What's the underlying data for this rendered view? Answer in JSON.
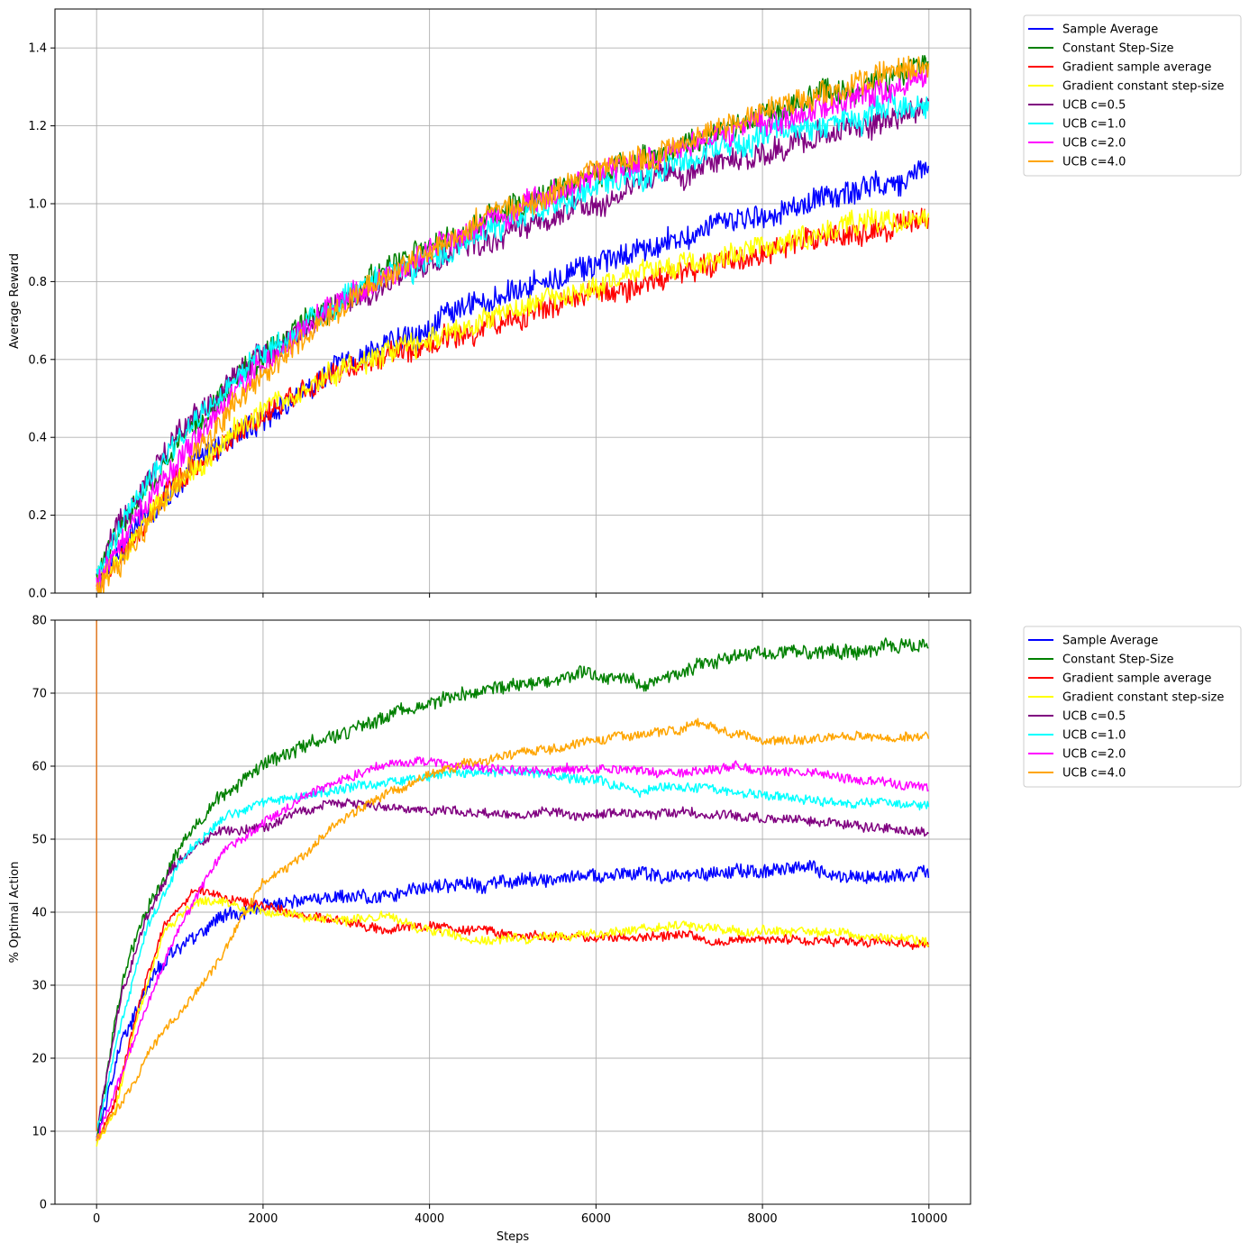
{
  "chart_data": [
    {
      "type": "line",
      "title": "",
      "xlabel": "",
      "ylabel": "Average Reward",
      "xlim": [
        -500,
        10500
      ],
      "ylim": [
        0.0,
        1.5
      ],
      "xticks": [
        0,
        2000,
        4000,
        6000,
        8000,
        10000
      ],
      "yticks": [
        0.0,
        0.2,
        0.4,
        0.6,
        0.8,
        1.0,
        1.2,
        1.4
      ],
      "ytick_labels": [
        "0.0",
        "0.2",
        "0.4",
        "0.6",
        "0.8",
        "1.0",
        "1.2",
        "1.4"
      ],
      "show_xtick_labels": false,
      "grid": true,
      "legend_position": "outside-right-top",
      "series": [
        {
          "name": "Sample Average",
          "color": "#0000ff",
          "noise": 0.03,
          "x": [
            0,
            300,
            800,
            1500,
            2000,
            3000,
            4000,
            5000,
            6000,
            7000,
            8000,
            9000,
            10000
          ],
          "values": [
            0.02,
            0.12,
            0.25,
            0.38,
            0.45,
            0.59,
            0.69,
            0.77,
            0.84,
            0.91,
            0.97,
            1.03,
            1.09
          ]
        },
        {
          "name": "Constant Step-Size",
          "color": "#008000",
          "noise": 0.03,
          "x": [
            0,
            300,
            800,
            1500,
            2000,
            3000,
            4000,
            5000,
            6000,
            7000,
            8000,
            9000,
            10000
          ],
          "values": [
            0.03,
            0.17,
            0.33,
            0.51,
            0.61,
            0.77,
            0.89,
            0.99,
            1.07,
            1.15,
            1.22,
            1.29,
            1.35
          ]
        },
        {
          "name": "Gradient sample average",
          "color": "#ff0000",
          "noise": 0.028,
          "x": [
            0,
            300,
            800,
            1500,
            2000,
            3000,
            4000,
            5000,
            6000,
            7000,
            8000,
            9000,
            10000
          ],
          "values": [
            0.01,
            0.09,
            0.24,
            0.38,
            0.46,
            0.57,
            0.64,
            0.71,
            0.77,
            0.82,
            0.87,
            0.92,
            0.96
          ]
        },
        {
          "name": "Gradient constant step-size",
          "color": "#ffff00",
          "noise": 0.028,
          "x": [
            0,
            300,
            800,
            1500,
            2000,
            3000,
            4000,
            5000,
            6000,
            7000,
            8000,
            9000,
            10000
          ],
          "values": [
            0.01,
            0.09,
            0.24,
            0.39,
            0.47,
            0.58,
            0.65,
            0.72,
            0.79,
            0.84,
            0.89,
            0.94,
            0.98
          ]
        },
        {
          "name": "UCB c=0.5",
          "color": "#800080",
          "noise": 0.03,
          "x": [
            0,
            300,
            800,
            1500,
            2000,
            3000,
            4000,
            5000,
            6000,
            7000,
            8000,
            9000,
            10000
          ],
          "values": [
            0.03,
            0.19,
            0.36,
            0.52,
            0.61,
            0.75,
            0.85,
            0.93,
            1.01,
            1.08,
            1.14,
            1.19,
            1.25
          ]
        },
        {
          "name": "UCB c=1.0",
          "color": "#00ffff",
          "noise": 0.03,
          "x": [
            0,
            300,
            800,
            1500,
            2000,
            3000,
            4000,
            5000,
            6000,
            7000,
            8000,
            9000,
            10000
          ],
          "values": [
            0.03,
            0.17,
            0.34,
            0.51,
            0.61,
            0.76,
            0.87,
            0.96,
            1.04,
            1.11,
            1.17,
            1.22,
            1.26
          ]
        },
        {
          "name": "UCB c=2.0",
          "color": "#ff00ff",
          "noise": 0.03,
          "x": [
            0,
            300,
            800,
            1500,
            2000,
            3000,
            4000,
            5000,
            6000,
            7000,
            8000,
            9000,
            10000
          ],
          "values": [
            0.02,
            0.13,
            0.29,
            0.48,
            0.59,
            0.76,
            0.88,
            0.98,
            1.07,
            1.14,
            1.21,
            1.27,
            1.32
          ]
        },
        {
          "name": "UCB c=4.0",
          "color": "#ffa500",
          "noise": 0.03,
          "x": [
            0,
            300,
            800,
            1500,
            2000,
            3000,
            4000,
            5000,
            6000,
            7000,
            8000,
            9000,
            10000
          ],
          "values": [
            0.0,
            0.08,
            0.24,
            0.44,
            0.56,
            0.75,
            0.89,
            0.99,
            1.08,
            1.16,
            1.23,
            1.3,
            1.36
          ]
        }
      ]
    },
    {
      "type": "line",
      "title": "",
      "xlabel": "Steps",
      "ylabel": "% Optimal Action",
      "xlim": [
        -500,
        10500
      ],
      "ylim": [
        0,
        80
      ],
      "xticks": [
        0,
        2000,
        4000,
        6000,
        8000,
        10000
      ],
      "yticks": [
        0,
        10,
        20,
        30,
        40,
        50,
        60,
        70,
        80
      ],
      "ytick_labels": [
        "0",
        "10",
        "20",
        "30",
        "40",
        "50",
        "60",
        "70",
        "80"
      ],
      "xtick_labels": [
        "0",
        "2000",
        "4000",
        "6000",
        "8000",
        "10000"
      ],
      "show_xtick_labels": true,
      "grid": true,
      "legend_position": "outside-right-top",
      "series": [
        {
          "name": "Sample Average",
          "color": "#0000ff",
          "noise": 0.9,
          "x": [
            0,
            300,
            700,
            1000,
            1500,
            2000,
            3000,
            3500,
            4000,
            5000,
            6000,
            7000,
            8000,
            8500,
            9000,
            9500,
            10000
          ],
          "values": [
            9,
            22,
            32,
            35,
            39,
            41,
            42,
            42,
            43.5,
            44,
            45,
            45,
            46,
            46,
            45,
            45,
            45.5
          ]
        },
        {
          "name": "Constant Step-Size",
          "color": "#008000",
          "noise": 0.9,
          "x": [
            0,
            300,
            500,
            1000,
            1500,
            2000,
            2500,
            3000,
            4000,
            5000,
            6000,
            6500,
            7000,
            7500,
            8000,
            9000,
            10000
          ],
          "values": [
            9,
            30,
            38,
            49,
            56,
            60,
            63,
            65,
            69,
            71,
            73,
            71.5,
            72.5,
            75,
            75.5,
            76,
            76.5
          ]
        },
        {
          "name": "Gradient sample average",
          "color": "#ff0000",
          "noise": 0.6,
          "x": [
            0,
            200,
            500,
            800,
            1200,
            1500,
            2000,
            3000,
            3500,
            4000,
            5000,
            6000,
            7000,
            7500,
            8000,
            9000,
            10000
          ],
          "values": [
            9,
            13,
            27,
            38,
            43.5,
            42,
            41,
            38.5,
            37.5,
            38,
            37,
            36.5,
            37,
            36,
            36.5,
            36,
            35.5
          ]
        },
        {
          "name": "Gradient constant step-size",
          "color": "#ffff00",
          "noise": 0.6,
          "x": [
            0,
            200,
            500,
            800,
            1200,
            1500,
            2000,
            3000,
            3500,
            4000,
            4700,
            5000,
            6000,
            7000,
            8000,
            9000,
            10000
          ],
          "values": [
            8.5,
            12,
            26,
            37,
            41.5,
            41.5,
            40,
            39,
            39.5,
            37.5,
            36,
            36.5,
            37,
            38,
            37.5,
            37,
            36
          ]
        },
        {
          "name": "UCB c=0.5",
          "color": "#800080",
          "noise": 0.6,
          "x": [
            0,
            300,
            600,
            900,
            1200,
            1500,
            2000,
            2500,
            3000,
            3500,
            4000,
            5000,
            6000,
            7000,
            8000,
            9000,
            10000
          ],
          "values": [
            10,
            29,
            39,
            46,
            49,
            51,
            51.5,
            54,
            55,
            54.5,
            54,
            53.5,
            53.5,
            53.5,
            53,
            52,
            51
          ]
        },
        {
          "name": "UCB c=1.0",
          "color": "#00ffff",
          "noise": 0.6,
          "x": [
            0,
            300,
            600,
            1000,
            1500,
            2000,
            2500,
            3000,
            4000,
            5000,
            6000,
            6500,
            7000,
            8000,
            9000,
            10000
          ],
          "values": [
            10,
            25,
            38,
            47,
            53,
            55,
            56,
            57,
            58.5,
            59.5,
            58,
            56.5,
            57.5,
            56,
            55,
            54.5
          ]
        },
        {
          "name": "UCB c=2.0",
          "color": "#ff00ff",
          "noise": 0.6,
          "x": [
            0,
            300,
            700,
            1000,
            1500,
            2000,
            2500,
            3000,
            3500,
            4000,
            5000,
            6000,
            7000,
            7700,
            8500,
            9000,
            10000
          ],
          "values": [
            9,
            18,
            30,
            38,
            48,
            52,
            56,
            58.5,
            60.5,
            60.5,
            59.5,
            59.5,
            59,
            60,
            59,
            58.5,
            57
          ]
        },
        {
          "name": "UCB c=4.0",
          "color": "#ffa500",
          "noise": 0.6,
          "x": [
            0,
            300,
            700,
            1000,
            1500,
            2000,
            2500,
            3000,
            3500,
            4000,
            4500,
            5000,
            6000,
            7000,
            7200,
            8000,
            8500,
            9000,
            10000
          ],
          "values": [
            9,
            14,
            22,
            26,
            34,
            44,
            48,
            53,
            56,
            59,
            60.5,
            61.5,
            63.5,
            65,
            66,
            63.5,
            63.5,
            64,
            64
          ]
        },
        {
          "name": "",
          "color": "#e07820",
          "noise": 0,
          "spike": true,
          "x": [
            0,
            0,
            0
          ],
          "values": [
            10,
            80,
            90
          ]
        }
      ]
    }
  ]
}
